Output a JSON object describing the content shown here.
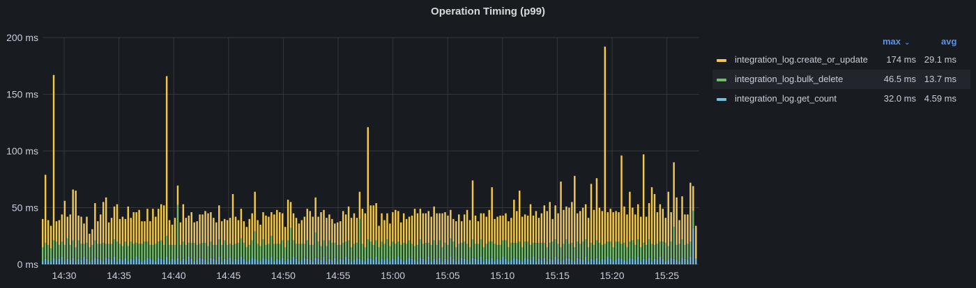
{
  "chart_data": {
    "type": "bar",
    "stacked": true,
    "title": "Operation Timing (p99)",
    "unit": "ms",
    "ylim": [
      0,
      200
    ],
    "y_ticks": [
      0,
      50,
      100,
      150,
      200
    ],
    "y_tick_labels": [
      "0 ms",
      "50 ms",
      "100 ms",
      "150 ms",
      "200 ms"
    ],
    "x_tick_labels": [
      "14:30",
      "14:35",
      "14:40",
      "14:45",
      "14:50",
      "14:55",
      "15:00",
      "15:05",
      "15:10",
      "15:15",
      "15:20",
      "15:25"
    ],
    "grid": true,
    "legend_placement": "right",
    "legend_columns": {
      "max": "max",
      "avg": "avg"
    },
    "series": [
      {
        "name": "integration_log.create_or_update",
        "color": "#f2c94c",
        "max": "174 ms",
        "avg": "29.1 ms",
        "values": [
          25,
          60,
          22,
          20,
          146,
          18,
          22,
          24,
          39,
          19,
          27,
          45,
          50,
          22,
          24,
          18,
          23,
          12,
          14,
          33,
          20,
          26,
          36,
          41,
          19,
          23,
          29,
          33,
          22,
          26,
          20,
          35,
          21,
          28,
          27,
          30,
          20,
          18,
          29,
          21,
          32,
          24,
          29,
          32,
          35,
          141,
          22,
          18,
          24,
          17,
          20,
          33,
          24,
          24,
          27,
          18,
          21,
          26,
          25,
          28,
          29,
          26,
          24,
          20,
          30,
          21,
          19,
          22,
          23,
          45,
          24,
          20,
          26,
          19,
          18,
          23,
          24,
          35,
          21,
          19,
          24,
          26,
          24,
          21,
          26,
          30,
          28,
          24,
          18,
          36,
          23,
          24,
          23,
          18,
          21,
          24,
          28,
          30,
          25,
          31,
          22,
          30,
          27,
          25,
          23,
          21,
          17,
          20,
          21,
          28,
          24,
          30,
          26,
          27,
          22,
          24,
          31,
          30,
          99,
          32,
          35,
          33,
          19,
          25,
          21,
          23,
          20,
          26,
          30,
          27,
          20,
          26,
          22,
          21,
          25,
          33,
          28,
          27,
          27,
          26,
          28,
          25,
          30,
          28,
          24,
          30,
          27,
          26,
          25,
          20,
          23,
          26,
          19,
          24,
          30,
          24,
          52,
          25,
          20,
          23,
          30,
          24,
          28,
          48,
          22,
          25,
          26,
          22,
          24,
          23,
          22,
          38,
          28,
          45,
          27,
          24,
          23,
          36,
          24,
          28,
          22,
          26,
          33,
          32,
          36,
          20,
          30,
          27,
          58,
          30,
          29,
          32,
          36,
          63,
          25,
          29,
          30,
          31,
          26,
          52,
          31,
          55,
          31,
          30,
          174,
          26,
          29,
          31,
          27,
          26,
          78,
          32,
          29,
          44,
          29,
          27,
          31,
          27,
          78,
          25,
          32,
          50,
          45,
          28,
          33,
          29,
          22,
          48,
          26,
          57,
          42,
          21,
          38,
          27,
          26,
          52,
          22,
          29
        ]
      },
      {
        "name": "integration_log.bulk_delete",
        "color": "#73bf69",
        "max": "46.5 ms",
        "avg": "13.7 ms",
        "values": [
          12,
          14,
          13,
          11,
          15,
          16,
          12,
          13,
          14,
          18,
          13,
          15,
          12,
          16,
          14,
          11,
          14,
          12,
          13,
          15,
          13,
          14,
          16,
          12,
          13,
          14,
          15,
          17,
          13,
          12,
          14,
          13,
          15,
          14,
          12,
          13,
          15,
          16,
          14,
          12,
          13,
          15,
          14,
          16,
          13,
          18,
          14,
          12,
          13,
          46.5,
          14,
          15,
          13,
          12,
          14,
          16,
          13,
          12,
          14,
          15,
          13,
          14,
          12,
          13,
          15,
          14,
          16,
          13,
          12,
          14,
          13,
          15,
          16,
          14,
          12,
          13,
          15,
          24,
          14,
          13,
          16,
          12,
          14,
          18,
          15,
          13,
          14,
          15,
          12,
          16,
          28,
          14,
          13,
          15,
          14,
          12,
          16,
          13,
          14,
          22,
          15,
          12,
          14,
          13,
          16,
          15,
          13,
          14,
          12,
          15,
          13,
          16,
          12,
          14,
          13,
          35,
          14,
          12,
          16,
          15,
          13,
          14,
          12,
          15,
          14,
          16,
          13,
          15,
          14,
          13,
          12,
          16,
          14,
          15,
          13,
          12,
          14,
          16,
          13,
          15,
          12,
          14,
          16,
          13,
          15,
          12,
          14,
          13,
          16,
          15,
          12,
          14,
          13,
          15,
          14,
          12,
          16,
          13,
          14,
          15,
          12,
          13,
          16,
          14,
          15,
          12,
          13,
          14,
          16,
          12,
          15,
          13,
          14,
          16,
          12,
          14,
          15,
          13,
          12,
          16,
          14,
          15,
          13,
          12,
          14,
          16,
          15,
          13,
          12,
          14,
          16,
          13,
          15,
          12,
          14,
          13,
          16,
          15,
          12,
          14,
          13,
          15,
          16,
          12,
          14,
          13,
          15,
          12,
          16,
          14,
          13,
          15,
          12,
          14,
          16,
          13,
          15,
          12,
          14,
          13,
          16,
          15,
          12,
          14,
          13,
          15,
          16,
          12,
          14,
          28,
          13,
          15,
          16,
          12,
          14,
          13,
          15
        ]
      },
      {
        "name": "integration_log.get_count",
        "color": "#73bfe0",
        "max": "32.0 ms",
        "avg": "4.59 ms",
        "values": [
          3,
          5,
          4,
          3,
          6,
          4,
          5,
          7,
          3,
          5,
          4,
          6,
          3,
          5,
          4,
          7,
          5,
          3,
          4,
          6,
          5,
          4,
          3,
          6,
          5,
          4,
          7,
          3,
          5,
          4,
          6,
          3,
          5,
          4,
          7,
          5,
          3,
          4,
          6,
          5,
          4,
          3,
          6,
          5,
          4,
          7,
          3,
          5,
          4,
          6,
          3,
          5,
          4,
          7,
          5,
          3,
          4,
          6,
          5,
          4,
          3,
          6,
          5,
          4,
          7,
          3,
          5,
          4,
          6,
          3,
          5,
          4,
          7,
          5,
          3,
          4,
          6,
          5,
          4,
          3,
          6,
          5,
          4,
          7,
          3,
          5,
          4,
          6,
          3,
          5,
          4,
          7,
          5,
          3,
          4,
          6,
          5,
          4,
          3,
          6,
          5,
          4,
          7,
          3,
          5,
          4,
          6,
          3,
          5,
          4,
          7,
          5,
          3,
          4,
          6,
          5,
          4,
          3,
          6,
          5,
          4,
          7,
          3,
          5,
          4,
          6,
          3,
          5,
          4,
          7,
          5,
          3,
          4,
          6,
          5,
          4,
          3,
          6,
          5,
          4,
          7,
          3,
          5,
          4,
          6,
          3,
          5,
          4,
          7,
          5,
          3,
          4,
          6,
          5,
          4,
          3,
          6,
          5,
          4,
          7,
          3,
          5,
          4,
          6,
          3,
          5,
          4,
          7,
          5,
          3,
          4,
          6,
          5,
          4,
          3,
          6,
          5,
          4,
          7,
          3,
          5,
          4,
          6,
          3,
          5,
          4,
          7,
          5,
          3,
          4,
          6,
          5,
          4,
          3,
          6,
          5,
          4,
          7,
          3,
          5,
          4,
          6,
          3,
          5,
          4,
          7,
          5,
          3,
          4,
          6,
          5,
          4,
          3,
          6,
          5,
          4,
          7,
          3,
          5,
          4,
          6,
          3,
          5,
          4,
          7,
          5,
          3,
          4,
          6,
          5,
          4,
          3,
          6,
          5,
          4,
          7,
          32,
          5,
          4
        ]
      }
    ]
  }
}
